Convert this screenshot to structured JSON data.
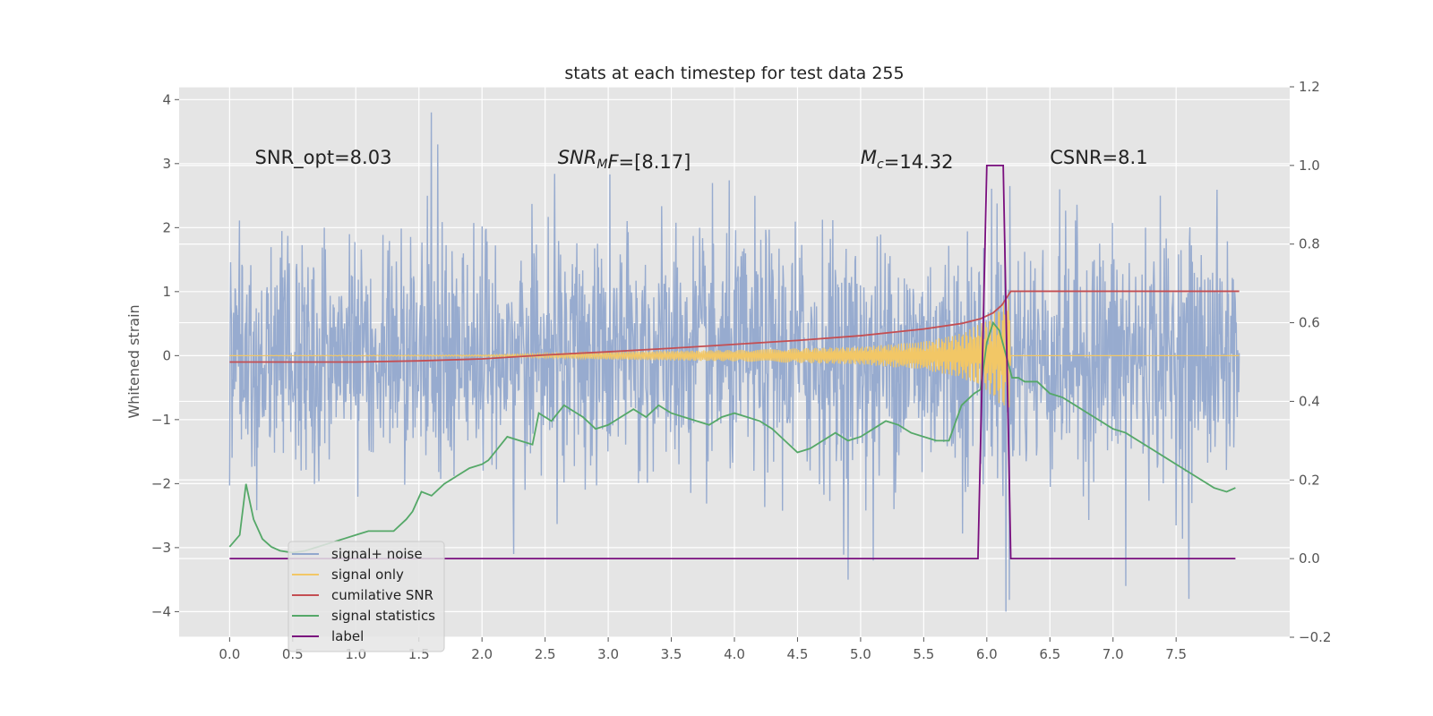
{
  "chart_data": {
    "type": "line",
    "title": "stats at each timestep for test data 255",
    "ylabel": "Whitened strain",
    "xlabel": "",
    "xlim": [
      -0.4,
      8.4
    ],
    "ylim": [
      -4.4,
      4.2
    ],
    "ylim_right": [
      -0.2,
      1.2
    ],
    "grid": true,
    "x_ticks": [
      0.0,
      0.5,
      1.0,
      1.5,
      2.0,
      2.5,
      3.0,
      3.5,
      4.0,
      4.5,
      5.0,
      5.5,
      6.0,
      6.5,
      7.0,
      7.5
    ],
    "x_tick_labels": [
      "0.0",
      "0.5",
      "1.0",
      "1.5",
      "2.0",
      "2.5",
      "3.0",
      "3.5",
      "4.0",
      "4.5",
      "5.0",
      "5.5",
      "6.0",
      "6.5",
      "7.0",
      "7.5"
    ],
    "y_ticks": [
      -4,
      -3,
      -2,
      -1,
      0,
      1,
      2,
      3,
      4
    ],
    "y_tick_labels": [
      "−4",
      "−3",
      "−2",
      "−1",
      "0",
      "1",
      "2",
      "3",
      "4"
    ],
    "y_right_ticks": [
      -0.2,
      0.0,
      0.2,
      0.4,
      0.6,
      0.8,
      1.0,
      1.2
    ],
    "y_right_tick_labels": [
      "−0.2",
      "0.0",
      "0.2",
      "0.4",
      "0.6",
      "0.8",
      "1.0",
      "1.2"
    ],
    "annotations": [
      {
        "parts": [
          {
            "t": "SNR_opt=8.03",
            "style": "normal"
          }
        ],
        "x": 0.2,
        "y": 3.0
      },
      {
        "parts": [
          {
            "t": "SNR",
            "style": "italic"
          },
          {
            "t": "M",
            "style": "italic-sub"
          },
          {
            "t": "F",
            "style": "italic"
          },
          {
            "t": "=[8.17]",
            "style": "normal"
          }
        ],
        "x": 2.6,
        "y": 3.0
      },
      {
        "parts": [
          {
            "t": "M",
            "style": "italic"
          },
          {
            "t": "c",
            "style": "italic-sub"
          },
          {
            "t": "=14.32",
            "style": "normal"
          }
        ],
        "x": 5.0,
        "y": 3.0
      },
      {
        "parts": [
          {
            "t": "CSNR=8.1",
            "style": "normal"
          }
        ],
        "x": 6.5,
        "y": 3.0
      }
    ],
    "legend": {
      "position": "lower-left",
      "entries": [
        {
          "label": "signal+ noise",
          "color": "#92a8cd"
        },
        {
          "label": "signal only",
          "color": "#f2c766"
        },
        {
          "label": "cumilative SNR",
          "color": "#c44e52"
        },
        {
          "label": "signal statistics",
          "color": "#55a868"
        },
        {
          "label": "label",
          "color": "#7a0f7e"
        }
      ]
    },
    "series": [
      {
        "name": "signal+ noise",
        "axis": "left",
        "color": "#92a8cd",
        "x_start": 0.0,
        "x_end": 8.0,
        "samples": 2048,
        "noise_std": 0.95,
        "spikes": [
          [
            1.6,
            3.8
          ],
          [
            2.25,
            -3.1
          ],
          [
            4.9,
            -3.5
          ],
          [
            6.15,
            -4.0
          ],
          [
            7.1,
            -3.6
          ],
          [
            7.6,
            -3.8
          ],
          [
            5.1,
            -3.2
          ],
          [
            1.65,
            3.3
          ]
        ]
      },
      {
        "name": "signal only",
        "axis": "left",
        "color": "#f2c766",
        "merger_time": 6.19,
        "envelope": [
          [
            0.0,
            0.0
          ],
          [
            2.0,
            0.01
          ],
          [
            3.0,
            0.06
          ],
          [
            4.0,
            0.09
          ],
          [
            5.0,
            0.14
          ],
          [
            5.5,
            0.22
          ],
          [
            5.8,
            0.35
          ],
          [
            6.0,
            0.55
          ],
          [
            6.1,
            0.75
          ],
          [
            6.18,
            0.9
          ],
          [
            6.19,
            0.0
          ],
          [
            8.0,
            0.0
          ]
        ]
      },
      {
        "name": "cumilative SNR",
        "axis": "right",
        "color": "#c44e52",
        "x": [
          0.0,
          1.0,
          1.5,
          2.0,
          2.5,
          3.0,
          3.5,
          4.0,
          4.5,
          5.0,
          5.5,
          5.8,
          5.95,
          6.05,
          6.12,
          6.19,
          6.25,
          8.0
        ],
        "values": [
          0.5,
          0.5,
          0.503,
          0.508,
          0.518,
          0.526,
          0.535,
          0.545,
          0.555,
          0.567,
          0.584,
          0.598,
          0.61,
          0.625,
          0.645,
          0.68,
          0.68,
          0.68
        ]
      },
      {
        "name": "signal statistics",
        "axis": "right",
        "color": "#55a868",
        "x": [
          0.0,
          0.08,
          0.13,
          0.19,
          0.26,
          0.33,
          0.4,
          0.5,
          0.6,
          0.7,
          0.8,
          0.9,
          1.0,
          1.1,
          1.2,
          1.3,
          1.4,
          1.45,
          1.52,
          1.6,
          1.7,
          1.8,
          1.9,
          2.0,
          2.05,
          2.1,
          2.2,
          2.3,
          2.4,
          2.45,
          2.55,
          2.65,
          2.7,
          2.8,
          2.9,
          3.0,
          3.1,
          3.2,
          3.3,
          3.4,
          3.5,
          3.6,
          3.7,
          3.8,
          3.9,
          4.0,
          4.1,
          4.2,
          4.3,
          4.4,
          4.5,
          4.6,
          4.7,
          4.8,
          4.9,
          5.0,
          5.1,
          5.2,
          5.3,
          5.4,
          5.5,
          5.6,
          5.7,
          5.8,
          5.9,
          5.95,
          6.0,
          6.05,
          6.1,
          6.15,
          6.2,
          6.25,
          6.3,
          6.4,
          6.5,
          6.6,
          6.7,
          6.8,
          6.9,
          7.0,
          7.1,
          7.2,
          7.3,
          7.4,
          7.5,
          7.6,
          7.7,
          7.8,
          7.9,
          7.97
        ],
        "values": [
          0.03,
          0.06,
          0.19,
          0.1,
          0.05,
          0.03,
          0.02,
          0.015,
          0.02,
          0.03,
          0.04,
          0.05,
          0.06,
          0.07,
          0.07,
          0.07,
          0.1,
          0.12,
          0.17,
          0.16,
          0.19,
          0.21,
          0.23,
          0.24,
          0.25,
          0.27,
          0.31,
          0.3,
          0.29,
          0.37,
          0.35,
          0.39,
          0.38,
          0.36,
          0.33,
          0.34,
          0.36,
          0.38,
          0.36,
          0.39,
          0.37,
          0.36,
          0.35,
          0.34,
          0.36,
          0.37,
          0.36,
          0.35,
          0.33,
          0.3,
          0.27,
          0.28,
          0.3,
          0.32,
          0.3,
          0.31,
          0.33,
          0.35,
          0.34,
          0.32,
          0.31,
          0.3,
          0.3,
          0.39,
          0.42,
          0.43,
          0.55,
          0.6,
          0.58,
          0.52,
          0.46,
          0.46,
          0.45,
          0.45,
          0.42,
          0.41,
          0.39,
          0.37,
          0.35,
          0.33,
          0.32,
          0.3,
          0.28,
          0.26,
          0.24,
          0.22,
          0.2,
          0.18,
          0.17,
          0.18
        ]
      },
      {
        "name": "label",
        "axis": "right",
        "color": "#7a0f7e",
        "x": [
          0.0,
          5.93,
          6.0,
          6.13,
          6.19,
          7.97
        ],
        "values": [
          0.0,
          0.0,
          1.0,
          1.0,
          0.0,
          0.0
        ]
      }
    ]
  }
}
